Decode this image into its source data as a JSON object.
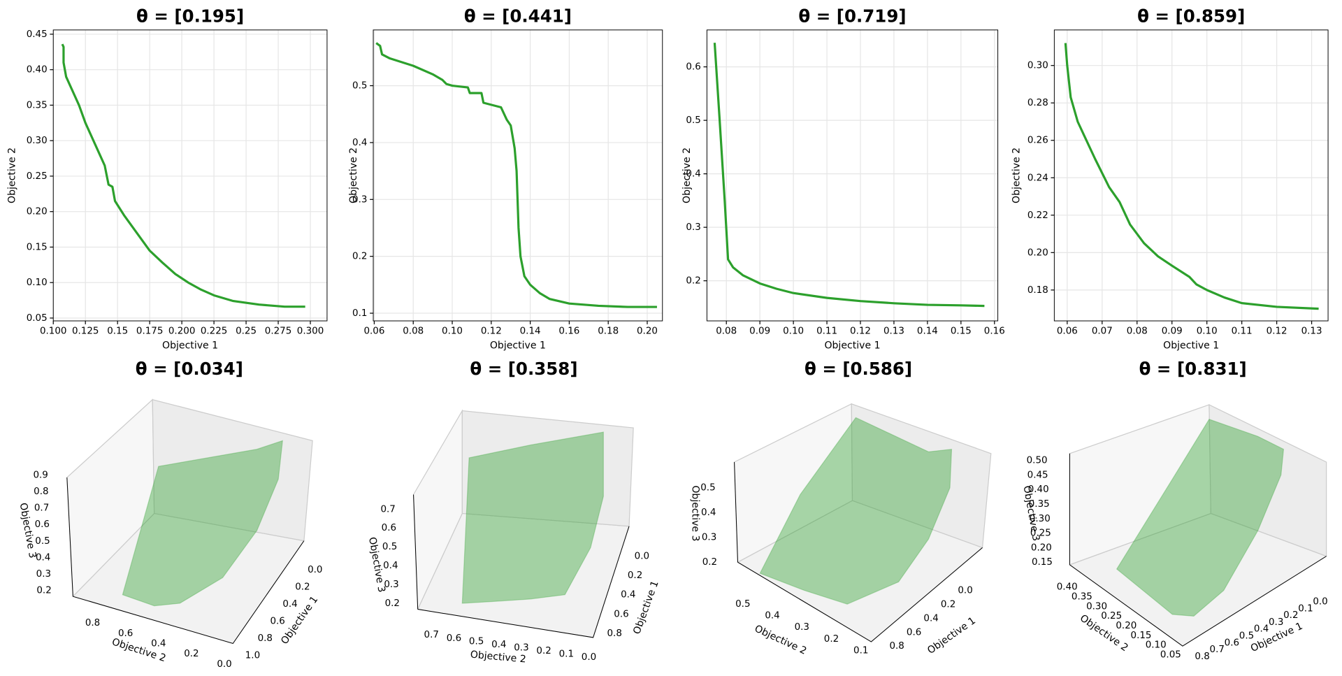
{
  "chart_data": [
    {
      "type": "line",
      "title": "θ = [0.195]",
      "xlabel": "Objective 1",
      "ylabel": "Objective 2",
      "color": "#2ca02c",
      "grid": true,
      "x": [
        0.107,
        0.108,
        0.108,
        0.11,
        0.115,
        0.12,
        0.125,
        0.13,
        0.135,
        0.14,
        0.143,
        0.146,
        0.148,
        0.155,
        0.165,
        0.175,
        0.185,
        0.195,
        0.205,
        0.215,
        0.225,
        0.24,
        0.26,
        0.28,
        0.296
      ],
      "values": [
        0.436,
        0.432,
        0.41,
        0.39,
        0.37,
        0.35,
        0.325,
        0.305,
        0.285,
        0.265,
        0.238,
        0.235,
        0.215,
        0.195,
        0.17,
        0.145,
        0.128,
        0.112,
        0.1,
        0.09,
        0.082,
        0.074,
        0.069,
        0.066,
        0.066
      ],
      "xlim": [
        0.1,
        0.313
      ],
      "ylim": [
        0.046,
        0.456
      ],
      "xticks": [
        {
          "value": 0.1,
          "label": "0.100"
        },
        0.125,
        0.15,
        0.175,
        {
          "value": 0.2,
          "label": "0.200"
        },
        0.225,
        0.25,
        0.275,
        {
          "value": 0.3,
          "label": "0.300"
        }
      ],
      "yticks": [
        0.05,
        {
          "value": 0.1,
          "label": "0.10"
        },
        0.15,
        {
          "value": 0.2,
          "label": "0.20"
        },
        0.25,
        {
          "value": 0.3,
          "label": "0.30"
        },
        0.35,
        {
          "value": 0.4,
          "label": "0.40"
        },
        0.45
      ]
    },
    {
      "type": "line",
      "title": "θ = [0.441]",
      "xlabel": "Objective 1",
      "ylabel": "Objective 2",
      "color": "#2ca02c",
      "grid": true,
      "x": [
        0.061,
        0.063,
        0.064,
        0.068,
        0.08,
        0.09,
        0.095,
        0.097,
        0.1,
        0.108,
        0.109,
        0.115,
        0.116,
        0.125,
        0.128,
        0.13,
        0.132,
        0.133,
        0.134,
        0.135,
        0.137,
        0.14,
        0.145,
        0.15,
        0.16,
        0.175,
        0.19,
        0.205
      ],
      "values": [
        0.575,
        0.57,
        0.555,
        0.548,
        0.535,
        0.52,
        0.51,
        0.503,
        0.5,
        0.497,
        0.487,
        0.487,
        0.47,
        0.462,
        0.44,
        0.43,
        0.39,
        0.35,
        0.25,
        0.2,
        0.165,
        0.15,
        0.135,
        0.125,
        0.117,
        0.113,
        0.111,
        0.111
      ],
      "xlim": [
        0.0595,
        0.2078
      ],
      "ylim": [
        0.0865,
        0.598
      ],
      "xticks": [
        0.06,
        0.08,
        {
          "value": 0.1,
          "label": "0.10"
        },
        0.12,
        0.14,
        0.16,
        0.18,
        {
          "value": 0.2,
          "label": "0.20"
        }
      ],
      "yticks": [
        0.1,
        0.2,
        0.3,
        0.4,
        0.5
      ]
    },
    {
      "type": "line",
      "title": "θ = [0.719]",
      "xlabel": "Objective 1",
      "ylabel": "Objective 2",
      "color": "#2ca02c",
      "grid": true,
      "x": [
        0.0765,
        0.078,
        0.0795,
        0.0805,
        0.082,
        0.085,
        0.09,
        0.095,
        0.1,
        0.11,
        0.12,
        0.13,
        0.14,
        0.15,
        0.157
      ],
      "values": [
        0.645,
        0.5,
        0.35,
        0.24,
        0.225,
        0.21,
        0.195,
        0.185,
        0.177,
        0.168,
        0.162,
        0.158,
        0.155,
        0.154,
        0.153
      ],
      "xlim": [
        0.0742,
        0.161
      ],
      "ylim": [
        0.125,
        0.669
      ],
      "xticks": [
        0.08,
        0.09,
        {
          "value": 0.1,
          "label": "0.10"
        },
        0.11,
        0.12,
        0.13,
        0.14,
        0.15,
        0.16
      ],
      "yticks": [
        0.2,
        0.3,
        0.4,
        0.5,
        0.6
      ]
    },
    {
      "type": "line",
      "title": "θ = [0.859]",
      "xlabel": "Objective 1",
      "ylabel": "Objective 2",
      "color": "#2ca02c",
      "grid": true,
      "x": [
        0.0595,
        0.06,
        0.061,
        0.063,
        0.065,
        0.068,
        0.072,
        0.075,
        0.078,
        0.082,
        0.086,
        0.09,
        0.095,
        0.097,
        0.1,
        0.105,
        0.11,
        0.12,
        0.132
      ],
      "values": [
        0.312,
        0.3,
        0.283,
        0.27,
        0.262,
        0.25,
        0.235,
        0.227,
        0.215,
        0.205,
        0.198,
        0.193,
        0.187,
        0.183,
        0.18,
        0.176,
        0.173,
        0.171,
        0.17
      ],
      "xlim": [
        0.0563,
        0.1347
      ],
      "ylim": [
        0.1635,
        0.319
      ],
      "xticks": [
        0.06,
        0.07,
        0.08,
        0.09,
        {
          "value": 0.1,
          "label": "0.10"
        },
        0.11,
        0.12,
        0.13
      ],
      "yticks": [
        0.18,
        {
          "value": 0.2,
          "label": "0.20"
        },
        0.22,
        0.24,
        0.26,
        0.28,
        {
          "value": 0.3,
          "label": "0.30"
        }
      ]
    },
    {
      "type": "surface3d",
      "title": "θ = [0.034]",
      "xlabel": "Objective 1",
      "ylabel": "Objective 2",
      "zlabel": "Objective 3",
      "color": "#2ca02c",
      "xlim": [
        0,
        1
      ],
      "ylim": [
        0,
        0.8
      ],
      "zlim": [
        0.2,
        0.9
      ],
      "xticks": [
        {
          "value": 0,
          "label": "0.0"
        },
        0.2,
        0.4,
        0.6,
        0.8,
        {
          "value": 1,
          "label": "1.0"
        }
      ],
      "yticks": [
        {
          "value": 0,
          "label": "0.0"
        },
        0.2,
        0.4,
        0.6,
        0.8
      ],
      "zticks": [
        0.2,
        0.3,
        0.4,
        0.5,
        0.6,
        0.7,
        0.8,
        0.9
      ]
    },
    {
      "type": "surface3d",
      "title": "θ = [0.358]",
      "xlabel": "Objective 1",
      "ylabel": "Objective 2",
      "zlabel": "Objective 3",
      "color": "#2ca02c",
      "xlim": [
        0,
        0.8
      ],
      "ylim": [
        0,
        0.7
      ],
      "zlim": [
        0.2,
        0.7
      ],
      "xticks": [
        {
          "value": 0,
          "label": "0.0"
        },
        0.2,
        0.4,
        0.6,
        0.8
      ],
      "yticks": [
        {
          "value": 0,
          "label": "0.0"
        },
        0.1,
        0.2,
        0.3,
        0.4,
        0.5,
        0.6,
        0.7
      ],
      "zticks": [
        0.2,
        0.3,
        0.4,
        0.5,
        0.6,
        0.7
      ]
    },
    {
      "type": "surface3d",
      "title": "θ = [0.586]",
      "xlabel": "Objective 1",
      "ylabel": "Objective 2",
      "zlabel": "Objective 3",
      "color": "#2ca02c",
      "xlim": [
        0,
        0.8
      ],
      "ylim": [
        0.1,
        0.5
      ],
      "zlim": [
        0.2,
        0.5
      ],
      "xticks": [
        {
          "value": 0,
          "label": "0.0"
        },
        0.2,
        0.4,
        0.6,
        0.8
      ],
      "yticks": [
        0.1,
        0.2,
        0.3,
        0.4,
        0.5
      ],
      "zticks": [
        0.2,
        0.3,
        0.4,
        0.5
      ]
    },
    {
      "type": "surface3d",
      "title": "θ = [0.831]",
      "xlabel": "Objective 1",
      "ylabel": "Objective 2",
      "zlabel": "Objective 3",
      "color": "#2ca02c",
      "xlim": [
        0,
        0.8
      ],
      "ylim": [
        0.05,
        0.4
      ],
      "zlim": [
        0.15,
        0.5
      ],
      "xticks": [
        {
          "value": 0,
          "label": "0.0"
        },
        0.1,
        0.2,
        0.3,
        0.4,
        0.5,
        0.6,
        0.7,
        0.8
      ],
      "yticks": [
        0.05,
        {
          "value": 0.1,
          "label": "0.10"
        },
        0.15,
        {
          "value": 0.2,
          "label": "0.20"
        },
        0.25,
        {
          "value": 0.3,
          "label": "0.30"
        },
        0.35,
        {
          "value": 0.4,
          "label": "0.40"
        }
      ],
      "zticks": [
        0.15,
        {
          "value": 0.2,
          "label": "0.20"
        },
        0.25,
        {
          "value": 0.3,
          "label": "0.30"
        },
        0.35,
        {
          "value": 0.4,
          "label": "0.40"
        },
        0.45,
        {
          "value": 0.5,
          "label": "0.50"
        }
      ]
    }
  ]
}
